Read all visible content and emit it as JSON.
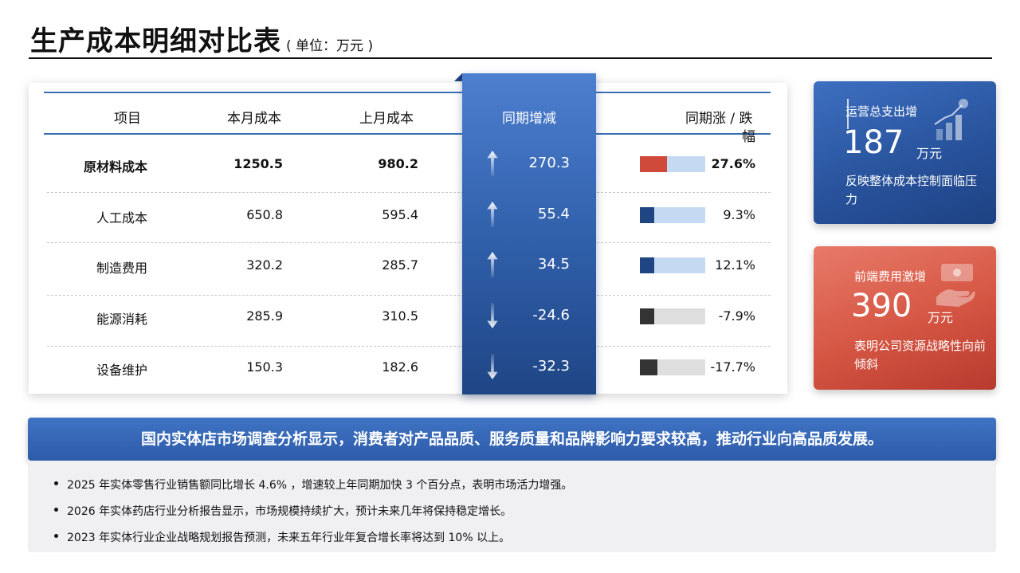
{
  "title": "生产成本明细对比表",
  "subtitle": "( 单位：万元 )",
  "table": {
    "headers": [
      "项目",
      "本月成本",
      "上月成本",
      "同期增减",
      "同期涨 / 跌",
      "幅"
    ],
    "rows": [
      {
        "item": "原材料成本",
        "current": "1250.5",
        "previous": "980.2",
        "change": "270.3",
        "direction": "up",
        "pct": "27.6%",
        "pct_value": 27.6,
        "bar_color": "#cf4a3a",
        "bar_track": "#c6d9f3"
      },
      {
        "item": "人工成本",
        "current": "650.8",
        "previous": "595.4",
        "change": "55.4",
        "direction": "up",
        "pct": "9.3%",
        "pct_value": 9.3,
        "bar_color": "#1f4583",
        "bar_track": "#c6d9f3"
      },
      {
        "item": "制造费用",
        "current": "320.2",
        "previous": "285.7",
        "change": "34.5",
        "direction": "up",
        "pct": "12.1%",
        "pct_value": 12.1,
        "bar_color": "#1f4583",
        "bar_track": "#c6d9f3"
      },
      {
        "item": "能源消耗",
        "current": "285.9",
        "previous": "310.5",
        "change": "-24.6",
        "direction": "down",
        "pct": "-7.9%",
        "pct_value": -7.9,
        "bar_color": "#333333",
        "bar_track": "#dedede"
      },
      {
        "item": "设备维护",
        "current": "150.3",
        "previous": "182.6",
        "change": "-32.3",
        "direction": "down",
        "pct": "-17.7%",
        "pct_value": -17.7,
        "bar_color": "#333333",
        "bar_track": "#dedede"
      }
    ]
  },
  "cards": {
    "blue": {
      "label": "运营总支出增",
      "value": "187",
      "unit": "万元",
      "desc": "反映整体成本控制面临压力",
      "icon": "growth-chart-icon"
    },
    "red": {
      "label": "前端费用激增",
      "value": "390",
      "unit": "万元",
      "desc": "表明公司资源战略性向前倾斜",
      "icon": "money-hand-icon"
    }
  },
  "banner": "国内实体店市场调查分析显示，消费者对产品品质、服务质量和品牌影响力要求较高，推动行业向高品质发展。",
  "notes": [
    "2025 年实体零售行业销售额同比增长 4.6% ，增速较上年同期加快 3 个百分点，表明市场活力增强。",
    "2026 年实体药店行业分析报告显示，市场规模持续扩大，预计未来几年将保持稳定增长。",
    "2023 年实体行业企业战略规划报告预测，未来五年行业年复合增长率将达到 10% 以上。"
  ],
  "colors": {
    "accent_blue": "#2f5ea8",
    "accent_red": "#d55543"
  }
}
